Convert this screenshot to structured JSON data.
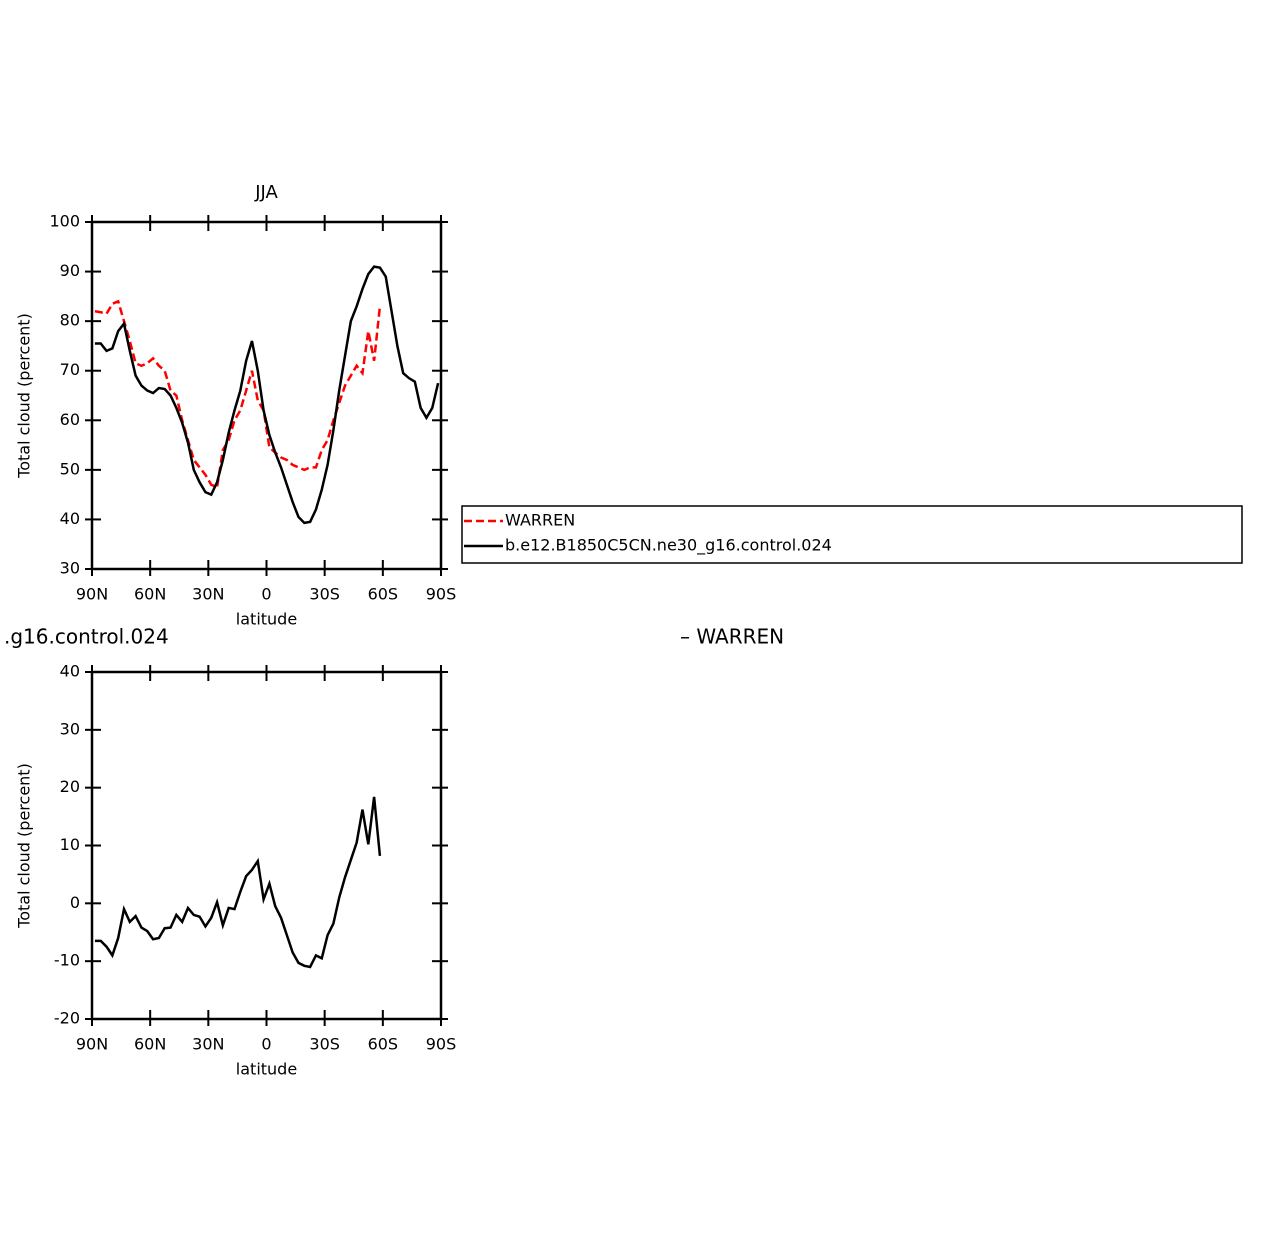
{
  "chart_data": [
    {
      "type": "line",
      "title": "JJA",
      "xlabel": "latitude",
      "ylabel": "Total cloud (percent)",
      "x": [
        88.5,
        85.5,
        82.5,
        79.5,
        76.5,
        73.5,
        70.5,
        67.5,
        64.5,
        61.5,
        58.5,
        55.5,
        52.5,
        49.5,
        46.5,
        43.5,
        40.5,
        37.5,
        34.5,
        31.5,
        28.5,
        25.5,
        22.5,
        19.5,
        16.5,
        13.5,
        10.5,
        7.5,
        4.5,
        1.5,
        -1.5,
        -4.5,
        -7.5,
        -10.5,
        -13.5,
        -16.5,
        -19.5,
        -22.5,
        -25.5,
        -28.5,
        -31.5,
        -34.5,
        -37.5,
        -40.5,
        -43.5,
        -46.5,
        -49.5,
        -52.5,
        -55.5,
        -58.5,
        -61.5,
        -64.5,
        -67.5,
        -70.5,
        -73.5,
        -76.5,
        -79.5,
        -82.5,
        -85.5,
        -88.5
      ],
      "series": [
        {
          "name": "WARREN",
          "color": "#ff0000",
          "line_style": "dashed",
          "values": [
            82,
            81.8,
            81.5,
            83.5,
            84,
            80,
            76,
            71.5,
            71,
            71.5,
            72.5,
            71,
            70,
            66,
            65,
            60,
            56,
            52,
            50.5,
            49,
            47,
            46.5,
            54,
            56,
            60,
            62,
            66,
            70,
            64,
            62,
            54.5,
            53.5,
            52.5,
            52,
            51,
            50.5,
            50,
            50.5,
            50.5,
            54,
            56,
            60,
            63.5,
            67,
            69,
            71,
            69.5,
            78,
            72,
            83,
            null,
            null,
            null,
            null,
            null,
            null,
            null,
            null,
            null,
            null
          ]
        },
        {
          "name": "b.e12.B1850C5CN.ne30_g16.control.024",
          "color": "#000000",
          "line_style": "solid",
          "values": [
            75.5,
            75.5,
            74,
            74.5,
            78,
            79.5,
            74,
            69,
            67,
            66,
            65.5,
            66.5,
            66.3,
            65,
            62.5,
            59.5,
            55.5,
            50,
            47.5,
            45.5,
            45,
            47.5,
            52,
            57.5,
            62,
            66,
            72,
            76,
            70,
            62,
            57,
            53.5,
            50.5,
            47,
            43.5,
            40.5,
            39.3,
            39.5,
            42,
            46,
            51,
            58,
            66,
            73,
            80,
            83,
            86.5,
            89.5,
            91,
            90.8,
            89,
            82,
            75,
            69.5,
            68.5,
            67.8,
            62.5,
            60.5,
            62.5,
            67.5
          ]
        }
      ],
      "xlim": [
        90,
        -90
      ],
      "xticks": [
        {
          "value": 90,
          "label": "90N"
        },
        {
          "value": 60,
          "label": "60N"
        },
        {
          "value": 30,
          "label": "30N"
        },
        0,
        {
          "value": -30,
          "label": "30S"
        },
        {
          "value": -60,
          "label": "60S"
        },
        {
          "value": -90,
          "label": "90S"
        }
      ],
      "ylim": [
        30,
        100
      ],
      "yticks": [
        30,
        40,
        50,
        60,
        70,
        80,
        90,
        100
      ],
      "legend": "right"
    },
    {
      "type": "line",
      "title_left": ".g16.control.024",
      "title_right": "– WARREN",
      "xlabel": "latitude",
      "ylabel": "Total cloud (percent)",
      "x": [
        88.5,
        85.5,
        82.5,
        79.5,
        76.5,
        73.5,
        70.5,
        67.5,
        64.5,
        61.5,
        58.5,
        55.5,
        52.5,
        49.5,
        46.5,
        43.5,
        40.5,
        37.5,
        34.5,
        31.5,
        28.5,
        25.5,
        22.5,
        19.5,
        16.5,
        13.5,
        10.5,
        7.5,
        4.5,
        1.5,
        -1.5,
        -4.5,
        -7.5,
        -10.5,
        -13.5,
        -16.5,
        -19.5,
        -22.5,
        -25.5,
        -28.5,
        -31.5,
        -34.5,
        -37.5,
        -40.5,
        -43.5,
        -46.5,
        -49.5,
        -52.5,
        -55.5,
        -58.5
      ],
      "series": [
        {
          "color": "#000000",
          "line_style": "solid",
          "values": [
            -6.5,
            -6.5,
            -7.5,
            -9,
            -6,
            -1,
            -3.2,
            -2.2,
            -4.2,
            -4.8,
            -6.2,
            -6,
            -4.3,
            -4.2,
            -2,
            -3.2,
            -0.8,
            -2,
            -2.3,
            -4,
            -2.5,
            0.2,
            -3.8,
            -0.8,
            -1,
            2,
            4.7,
            5.8,
            7.3,
            0.7,
            3.4,
            -0.5,
            -2.5,
            -5.5,
            -8.5,
            -10.3,
            -10.8,
            -11,
            -9,
            -9.5,
            -5.5,
            -3.5,
            1,
            4.5,
            7.5,
            10.5,
            16.2,
            10.2,
            18.4,
            8.2
          ]
        }
      ],
      "xlim": [
        90,
        -90
      ],
      "xticks": [
        {
          "value": 90,
          "label": "90N"
        },
        {
          "value": 60,
          "label": "60N"
        },
        {
          "value": 30,
          "label": "30N"
        },
        0,
        {
          "value": -30,
          "label": "30S"
        },
        {
          "value": -60,
          "label": "60S"
        },
        {
          "value": -90,
          "label": "90S"
        }
      ],
      "ylim": [
        -20,
        40
      ],
      "yticks": [
        -20,
        -10,
        0,
        10,
        20,
        30,
        40
      ]
    }
  ]
}
